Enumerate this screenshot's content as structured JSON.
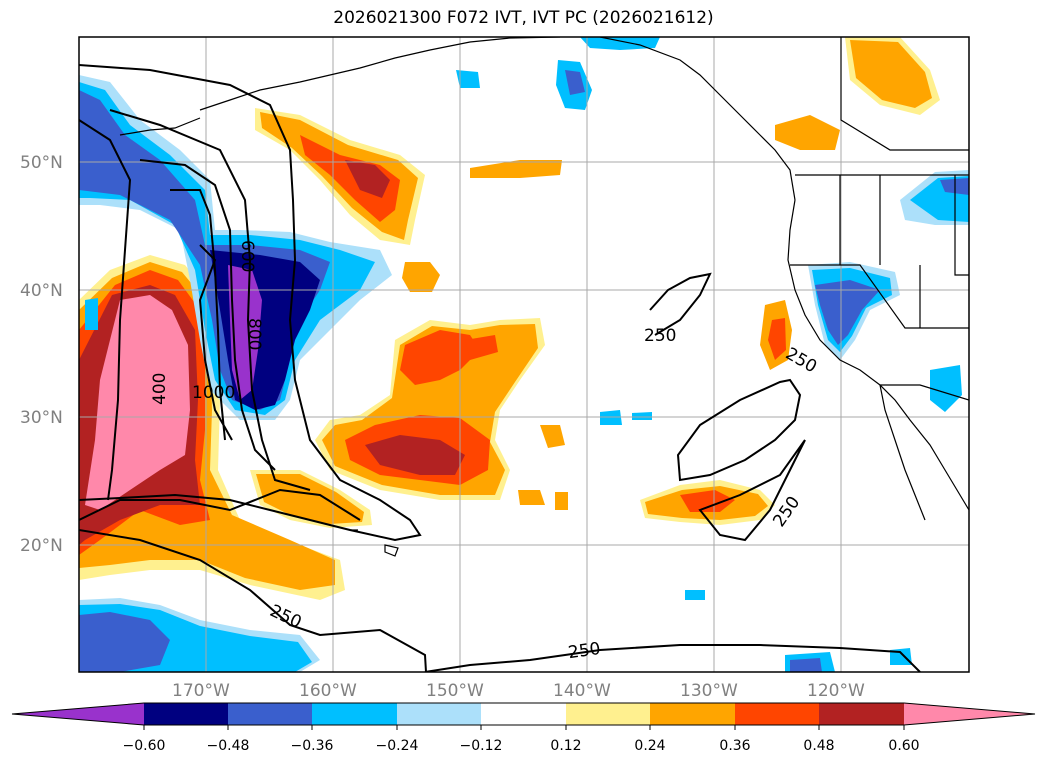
{
  "title": "2026021300 F072 IVT, IVT PC (2026021612)",
  "map": {
    "lat_labels": [
      "50°N",
      "40°N",
      "30°N",
      "20°N"
    ],
    "lon_labels": [
      "170°W",
      "160°W",
      "150°W",
      "140°W",
      "130°W",
      "120°W"
    ],
    "contour_labels": [
      "250",
      "250",
      "250",
      "250",
      "250",
      "400",
      "600",
      "800",
      "1000"
    ],
    "colors": {
      "pos_012": "#fff08f",
      "pos_024": "#ffa500",
      "pos_036": "#ff4500",
      "pos_048": "#b22222",
      "pos_060": "#ff88aa",
      "neg_012": "#ace0fa",
      "neg_024": "#00bfff",
      "neg_036": "#3a5fcd",
      "neg_048": "#000080",
      "neg_060": "#9932cc"
    }
  },
  "colorbar": {
    "ticks": [
      "−0.60",
      "−0.48",
      "−0.36",
      "−0.24",
      "−0.12",
      "0.12",
      "0.24",
      "0.36",
      "0.48",
      "0.60"
    ],
    "colors": [
      "#9932cc",
      "#000080",
      "#3a5fcd",
      "#00bfff",
      "#ace0fa",
      "#ffffff",
      "#fff08f",
      "#ffa500",
      "#ff4500",
      "#b22222",
      "#ff88aa"
    ]
  }
}
